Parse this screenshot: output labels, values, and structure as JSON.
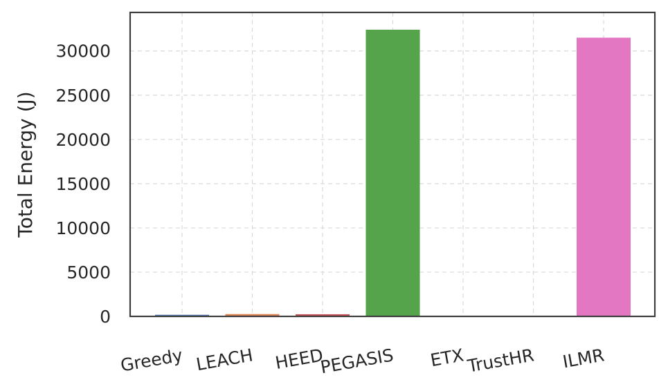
{
  "chart_data": {
    "type": "bar",
    "categories": [
      "Greedy",
      "LEACH",
      "HEED",
      "PEGASIS",
      "ETX",
      "TrustHR",
      "ILMR"
    ],
    "values": [
      180,
      260,
      240,
      32400,
      40,
      40,
      31500
    ],
    "colors": [
      "#4c72b0",
      "#dd8452",
      "#c44e52",
      "#55a34b",
      "#8c8c8c",
      "#8c8c8c",
      "#e377c2"
    ],
    "title": "",
    "xlabel": "",
    "ylabel": "Total Energy (J)",
    "ylim": [
      0,
      34200
    ],
    "yticks": [
      0,
      5000,
      10000,
      15000,
      20000,
      25000,
      30000
    ],
    "grid": true,
    "legend": "none"
  }
}
